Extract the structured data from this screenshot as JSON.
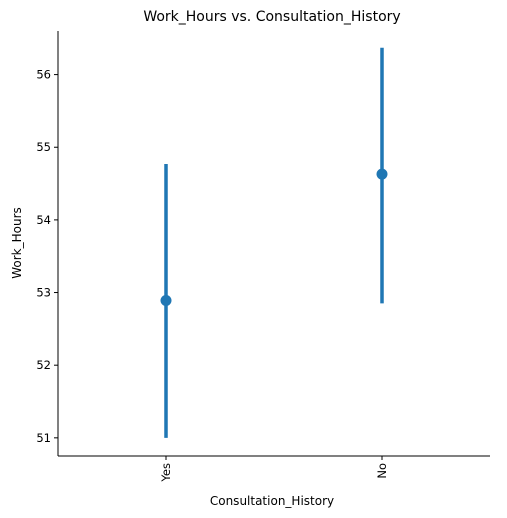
{
  "chart_data": {
    "type": "pointplot",
    "title": "Work_Hours vs. Consultation_History",
    "xlabel": "Consultation_History",
    "ylabel": "Work_Hours",
    "categories": [
      "Yes",
      "No"
    ],
    "series": [
      {
        "values": [
          52.89,
          54.63
        ],
        "ci_low": [
          51.0,
          52.85
        ],
        "ci_high": [
          54.77,
          56.37
        ]
      }
    ],
    "y_ticks": [
      51,
      52,
      53,
      54,
      55,
      56
    ],
    "y_tick_labels": [
      "51",
      "52",
      "53",
      "54",
      "55",
      "56"
    ],
    "ylim": [
      50.75,
      56.6
    ],
    "grid": false,
    "legend": "none",
    "x_tick_rotation": "vertical",
    "colors": {
      "series": "#1f77b4",
      "axis": "#000000"
    }
  }
}
